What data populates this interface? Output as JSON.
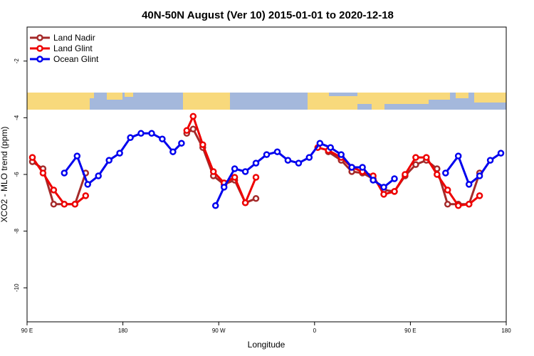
{
  "chart_data": {
    "type": "line",
    "title": "40N-50N August (Ver 10)   2015-01-01 to 2020-12-18",
    "xlabel": "Longitude",
    "ylabel": "XCO2 - MLO trend (ppm)",
    "x_ticks": [
      {
        "value": 0,
        "label": "90 E"
      },
      {
        "value": 90,
        "label": "180"
      },
      {
        "value": 180,
        "label": "90 W"
      },
      {
        "value": 270,
        "label": "0"
      },
      {
        "value": 360,
        "label": "90 E"
      },
      {
        "value": 450,
        "label": "180"
      }
    ],
    "y_ticks": [
      -2,
      -4,
      -6,
      -8,
      -10
    ],
    "xlim": [
      0,
      450
    ],
    "ylim": [
      -11.2,
      -0.8
    ],
    "grid": false,
    "legend_position": "top-left",
    "series": [
      {
        "name": "Land Nadir",
        "color": "#a52a2a",
        "segments": [
          [
            [
              5,
              -5.55
            ],
            [
              15,
              -5.8
            ],
            [
              25,
              -7.05
            ],
            [
              35,
              -7.05
            ],
            [
              45,
              -7.05
            ],
            [
              55,
              -5.95
            ]
          ],
          [
            [
              150,
              -4.55
            ],
            [
              156,
              -4.4
            ],
            [
              165,
              -5.05
            ],
            [
              175,
              -6.05
            ],
            [
              185,
              -6.35
            ],
            [
              195,
              -6.2
            ],
            [
              205,
              -7.0
            ],
            [
              215,
              -6.85
            ]
          ],
          [
            [
              283,
              -5.2
            ],
            [
              295,
              -5.5
            ],
            [
              305,
              -5.9
            ],
            [
              315,
              -5.95
            ],
            [
              325,
              -6.15
            ],
            [
              335,
              -6.55
            ],
            [
              345,
              -6.6
            ],
            [
              355,
              -6.05
            ],
            [
              365,
              -5.65
            ],
            [
              375,
              -5.5
            ],
            [
              385,
              -5.8
            ],
            [
              395,
              -7.05
            ],
            [
              405,
              -7.05
            ],
            [
              415,
              -7.05
            ],
            [
              425,
              -5.95
            ]
          ]
        ]
      },
      {
        "name": "Land Glint",
        "color": "#ee0000",
        "segments": [
          [
            [
              5,
              -5.4
            ],
            [
              15,
              -5.95
            ],
            [
              25,
              -6.55
            ],
            [
              35,
              -7.05
            ],
            [
              45,
              -7.05
            ],
            [
              55,
              -6.75
            ]
          ],
          [
            [
              150,
              -4.45
            ],
            [
              156,
              -3.95
            ],
            [
              165,
              -4.95
            ],
            [
              175,
              -5.9
            ],
            [
              185,
              -6.3
            ],
            [
              195,
              -6.1
            ],
            [
              205,
              -7.0
            ],
            [
              215,
              -6.1
            ]
          ],
          [
            [
              273,
              -5.05
            ],
            [
              283,
              -5.15
            ],
            [
              295,
              -5.4
            ],
            [
              305,
              -5.75
            ],
            [
              315,
              -5.9
            ],
            [
              325,
              -6.05
            ],
            [
              335,
              -6.7
            ],
            [
              345,
              -6.6
            ],
            [
              355,
              -6.0
            ],
            [
              365,
              -5.4
            ],
            [
              375,
              -5.4
            ],
            [
              385,
              -6.0
            ],
            [
              395,
              -6.55
            ],
            [
              405,
              -7.1
            ],
            [
              415,
              -7.05
            ],
            [
              425,
              -6.75
            ]
          ]
        ]
      },
      {
        "name": "Ocean Glint",
        "color": "#0000ee",
        "segments": [
          [
            [
              35,
              -5.95
            ],
            [
              47,
              -5.35
            ],
            [
              57,
              -6.35
            ],
            [
              67,
              -6.05
            ],
            [
              77,
              -5.5
            ],
            [
              87,
              -5.25
            ],
            [
              97,
              -4.7
            ],
            [
              107,
              -4.55
            ],
            [
              117,
              -4.55
            ],
            [
              127,
              -4.75
            ],
            [
              137,
              -5.2
            ],
            [
              145,
              -4.9
            ]
          ],
          [
            [
              177,
              -7.1
            ],
            [
              185,
              -6.45
            ],
            [
              195,
              -5.8
            ],
            [
              205,
              -5.9
            ],
            [
              215,
              -5.6
            ],
            [
              225,
              -5.3
            ],
            [
              235,
              -5.2
            ],
            [
              245,
              -5.5
            ],
            [
              255,
              -5.6
            ],
            [
              265,
              -5.4
            ],
            [
              275,
              -4.9
            ],
            [
              285,
              -5.05
            ],
            [
              295,
              -5.3
            ],
            [
              305,
              -5.75
            ],
            [
              315,
              -5.75
            ],
            [
              325,
              -6.2
            ],
            [
              335,
              -6.45
            ],
            [
              345,
              -6.15
            ]
          ],
          [
            [
              393,
              -5.95
            ],
            [
              405,
              -5.35
            ],
            [
              415,
              -6.35
            ],
            [
              425,
              -6.05
            ],
            [
              435,
              -5.5
            ],
            [
              445,
              -5.25
            ]
          ]
        ]
      }
    ],
    "map_strip": {
      "ocean_color": "#a4b8dc",
      "land_color": "#f8d97c"
    }
  }
}
